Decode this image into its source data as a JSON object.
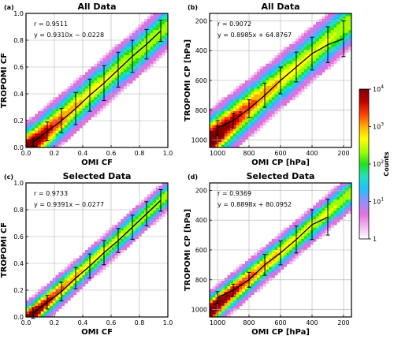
{
  "colorbar": {
    "label": "Counts",
    "ticks": [
      {
        "base": "10",
        "exp": "4",
        "value": 4
      },
      {
        "base": "10",
        "exp": "3",
        "value": 3
      },
      {
        "base": "10",
        "exp": "2",
        "value": 2
      },
      {
        "base": "10",
        "exp": "1",
        "value": 1
      },
      {
        "base": "1",
        "exp": "",
        "value": 0
      }
    ],
    "colors": [
      "#ffffff",
      "#f0b8f0",
      "#e070e0",
      "#9090ff",
      "#20c0ff",
      "#20e0c0",
      "#20e020",
      "#a0ff00",
      "#ffff00",
      "#ffb000",
      "#ff4000",
      "#c00000",
      "#800000"
    ]
  },
  "chart_data": [
    {
      "type": "scatter",
      "panel": "(a)",
      "title": "All Data",
      "xlabel": "OMI CF",
      "ylabel": "TROPOMI CF",
      "xlim": [
        0,
        1
      ],
      "ylim": [
        0,
        1
      ],
      "x_reversed": false,
      "y_reversed": false,
      "xticks": [
        "0.0",
        "0.2",
        "0.4",
        "0.6",
        "0.8",
        "1.0"
      ],
      "yticks": [
        "0.0",
        "0.2",
        "0.4",
        "0.6",
        "0.8",
        "1.0"
      ],
      "tick_values_x": [
        0,
        0.2,
        0.4,
        0.6,
        0.8,
        1.0
      ],
      "tick_values_y": [
        0,
        0.2,
        0.4,
        0.6,
        0.8,
        1.0
      ],
      "r_text": "r = 0.9511",
      "fit_text": "y = 0.9310x − 0.0228",
      "slope": 0.931,
      "intercept": -0.0228,
      "spread": 0.12,
      "binned": {
        "x": [
          0.05,
          0.15,
          0.25,
          0.35,
          0.45,
          0.55,
          0.65,
          0.75,
          0.85,
          0.95
        ],
        "y": [
          0.04,
          0.12,
          0.2,
          0.29,
          0.39,
          0.48,
          0.58,
          0.68,
          0.77,
          0.87
        ],
        "err": [
          0.03,
          0.07,
          0.09,
          0.12,
          0.12,
          0.13,
          0.13,
          0.12,
          0.11,
          0.08
        ]
      }
    },
    {
      "type": "scatter",
      "panel": "(b)",
      "title": "All Data",
      "xlabel": "OMI CP [hPa]",
      "ylabel": "TROPOMI CP [hPa]",
      "xlim": [
        1050,
        150
      ],
      "ylim": [
        1050,
        150
      ],
      "x_reversed": true,
      "y_reversed": true,
      "xticks": [
        "1000",
        "800",
        "600",
        "400",
        "200"
      ],
      "yticks": [
        "200",
        "400",
        "600",
        "800",
        "1000"
      ],
      "tick_values_x": [
        1000,
        800,
        600,
        400,
        200
      ],
      "tick_values_y": [
        200,
        400,
        600,
        800,
        1000
      ],
      "r_text": "r = 0.9072",
      "fit_text": "y = 0.8985x + 64.8767",
      "slope": 0.8985,
      "intercept": 64.8767,
      "spread": 120,
      "binned": {
        "x": [
          1000,
          900,
          800,
          700,
          600,
          500,
          400,
          300,
          200
        ],
        "y": [
          920,
          870,
          790,
          700,
          600,
          510,
          420,
          360,
          320
        ],
        "err": [
          50,
          50,
          60,
          80,
          90,
          100,
          110,
          120,
          120
        ]
      }
    },
    {
      "type": "scatter",
      "panel": "(c)",
      "title": "Selected Data",
      "xlabel": "OMI CF",
      "ylabel": "TROPOMI CF",
      "xlim": [
        0,
        1
      ],
      "ylim": [
        0,
        1
      ],
      "x_reversed": false,
      "y_reversed": false,
      "xticks": [
        "0.0",
        "0.2",
        "0.4",
        "0.6",
        "0.8",
        "1.0"
      ],
      "yticks": [
        "0.0",
        "0.2",
        "0.4",
        "0.6",
        "0.8",
        "1.0"
      ],
      "tick_values_x": [
        0,
        0.2,
        0.4,
        0.6,
        0.8,
        1.0
      ],
      "tick_values_y": [
        0,
        0.2,
        0.4,
        0.6,
        0.8,
        1.0
      ],
      "r_text": "r = 0.9733",
      "fit_text": "y = 0.9391x − 0.0277",
      "slope": 0.9391,
      "intercept": -0.0277,
      "spread": 0.08,
      "binned": {
        "x": [
          0.05,
          0.15,
          0.25,
          0.35,
          0.45,
          0.55,
          0.65,
          0.75,
          0.85,
          0.95
        ],
        "y": [
          0.03,
          0.11,
          0.19,
          0.29,
          0.38,
          0.48,
          0.57,
          0.67,
          0.77,
          0.87
        ],
        "err": [
          0.04,
          0.05,
          0.07,
          0.08,
          0.09,
          0.09,
          0.09,
          0.09,
          0.09,
          0.08
        ]
      }
    },
    {
      "type": "scatter",
      "panel": "(d)",
      "title": "Selected Data",
      "xlabel": "OMI CP [hPa]",
      "ylabel": "TROPOMI CP [hPa]",
      "xlim": [
        1050,
        150
      ],
      "ylim": [
        1050,
        150
      ],
      "x_reversed": true,
      "y_reversed": true,
      "xticks": [
        "1000",
        "800",
        "600",
        "400",
        "200"
      ],
      "yticks": [
        "200",
        "400",
        "600",
        "800",
        "1000"
      ],
      "tick_values_x": [
        1000,
        800,
        600,
        400,
        200
      ],
      "tick_values_y": [
        200,
        400,
        600,
        800,
        1000
      ],
      "r_text": "r = 0.9369",
      "fit_text": "y = 0.8898x + 80.0952",
      "slope": 0.8898,
      "intercept": 80.0952,
      "spread": 80,
      "binned": {
        "x": [
          1000,
          900,
          800,
          700,
          600,
          500,
          400,
          300
        ],
        "y": [
          920,
          870,
          800,
          700,
          620,
          530,
          430,
          380
        ],
        "err": [
          40,
          40,
          50,
          70,
          80,
          90,
          100,
          120
        ]
      }
    }
  ]
}
